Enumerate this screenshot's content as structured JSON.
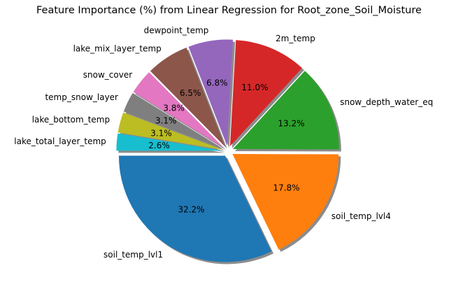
{
  "chart_data": {
    "type": "pie",
    "title": "Feature Importance (%) from Linear Regression for Root_zone_Soil_Moisture",
    "start_angle_deg": 180,
    "direction": "counterclockwise",
    "shadow": true,
    "exploded": true,
    "slices": [
      {
        "label": "soil_temp_lvl1",
        "value": 32.2,
        "pct_label": "32.2%",
        "color": "#1f77b4"
      },
      {
        "label": "soil_temp_lvl4",
        "value": 17.8,
        "pct_label": "17.8%",
        "color": "#ff7f0e"
      },
      {
        "label": "snow_depth_water_eq",
        "value": 13.2,
        "pct_label": "13.2%",
        "color": "#2ca02c"
      },
      {
        "label": "2m_temp",
        "value": 11.0,
        "pct_label": "11.0%",
        "color": "#d62728"
      },
      {
        "label": "dewpoint_temp",
        "value": 6.8,
        "pct_label": "6.8%",
        "color": "#9467bd"
      },
      {
        "label": "lake_mix_layer_temp",
        "value": 6.5,
        "pct_label": "6.5%",
        "color": "#8c564b"
      },
      {
        "label": "snow_cover",
        "value": 3.8,
        "pct_label": "3.8%",
        "color": "#e377c2"
      },
      {
        "label": "temp_snow_layer",
        "value": 3.1,
        "pct_label": "3.1%",
        "color": "#7f7f7f"
      },
      {
        "label": "lake_bottom_temp",
        "value": 3.1,
        "pct_label": "3.1%",
        "color": "#bcbd22"
      },
      {
        "label": "lake_total_layer_temp",
        "value": 2.6,
        "pct_label": "2.6%",
        "color": "#17becf"
      }
    ]
  }
}
